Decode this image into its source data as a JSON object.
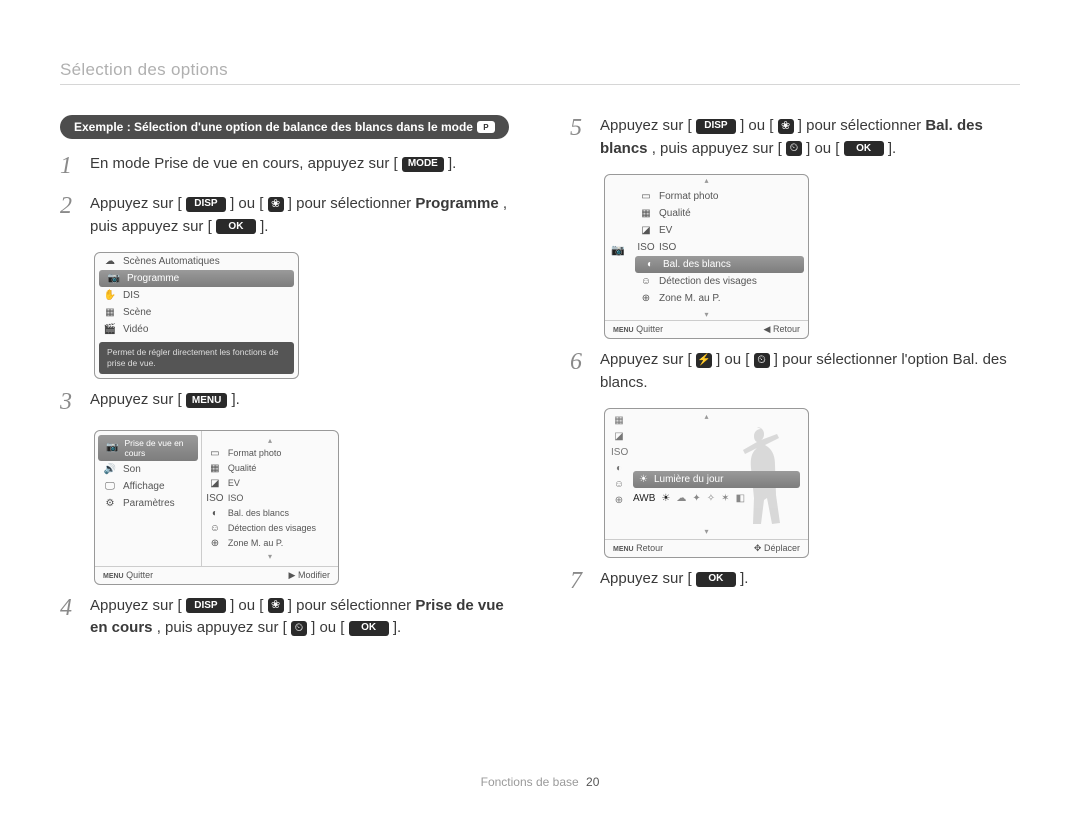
{
  "header": "Sélection des options",
  "example_pill": "Exemple : Sélection d'une option de balance des blancs dans le mode",
  "example_pill_icon": "P",
  "buttons": {
    "mode": "MODE",
    "disp": "DISP",
    "menu": "MENU",
    "ok": "OK",
    "flower": "❀",
    "timer": "⏲",
    "flash": "⚡"
  },
  "steps": {
    "s1_a": "En mode Prise de vue en cours, appuyez sur [",
    "s1_b": "].",
    "s2_a": "Appuyez sur [",
    "s2_b": "] ou [",
    "s2_c": "] pour sélectionner ",
    "s2_bold": "Programme",
    "s2_d": ", puis appuyez sur [",
    "s2_e": "].",
    "s3_a": "Appuyez sur [",
    "s3_b": "].",
    "s4_a": "Appuyez sur [",
    "s4_b": "] ou [",
    "s4_c": "] pour sélectionner ",
    "s4_bold": "Prise de vue en cours",
    "s4_d": ", puis appuyez sur [",
    "s4_e": "] ou [",
    "s4_f": "].",
    "s5_a": "Appuyez sur [",
    "s5_b": "] ou [",
    "s5_c": "] pour sélectionner ",
    "s5_bold": "Bal. des blancs",
    "s5_d": ", puis appuyez sur [",
    "s5_e": "] ou [",
    "s5_f": "].",
    "s6_a": "Appuyez sur [",
    "s6_b": "] ou [",
    "s6_c": "] pour sélectionner l'option Bal. des blancs.",
    "s7_a": "Appuyez sur [",
    "s7_b": "]."
  },
  "cam_step2": {
    "items": [
      {
        "icon": "☁",
        "label": "Scènes Automatiques"
      },
      {
        "icon": "📷",
        "label": "Programme",
        "selected": true
      },
      {
        "icon": "✋",
        "label": "DIS"
      },
      {
        "icon": "▦",
        "label": "Scène"
      },
      {
        "icon": "🎬",
        "label": "Vidéo"
      }
    ],
    "desc": "Permet de régler directement les fonctions de prise de vue."
  },
  "cam_step3": {
    "left": [
      {
        "icon": "📷",
        "label": "Prise de vue en cours",
        "selected": true
      },
      {
        "icon": "🔊",
        "label": "Son"
      },
      {
        "icon": "🖵",
        "label": "Affichage"
      },
      {
        "icon": "⚙",
        "label": "Paramètres"
      }
    ],
    "right": [
      {
        "icon": "▭",
        "label": "Format photo"
      },
      {
        "icon": "▦",
        "label": "Qualité"
      },
      {
        "icon": "◪",
        "label": "EV"
      },
      {
        "icon": "ISO",
        "label": "ISO"
      },
      {
        "icon": "◐",
        "label": "Bal. des blancs"
      },
      {
        "icon": "☺",
        "label": "Détection des visages"
      },
      {
        "icon": "⊕",
        "label": "Zone M. au P."
      }
    ],
    "footer_left_icon": "MENU",
    "footer_left": "Quitter",
    "footer_right_icon": "▶",
    "footer_right": "Modifier"
  },
  "cam_step5": {
    "side_icon": "📷",
    "items": [
      {
        "icon": "▭",
        "label": "Format photo"
      },
      {
        "icon": "▦",
        "label": "Qualité"
      },
      {
        "icon": "◪",
        "label": "EV"
      },
      {
        "icon": "ISO",
        "label": "ISO"
      },
      {
        "icon": "◐",
        "label": "Bal. des blancs",
        "selected": true
      },
      {
        "icon": "☺",
        "label": "Détection des visages"
      },
      {
        "icon": "⊕",
        "label": "Zone M. au P."
      }
    ],
    "footer_left_icon": "MENU",
    "footer_left": "Quitter",
    "footer_right_icon": "◀",
    "footer_right": "Retour"
  },
  "cam_step6": {
    "left_icons": [
      "▦",
      "◪",
      "ISO",
      "◐",
      "☺",
      "⊕"
    ],
    "wb_icon": "☀",
    "wb_label": "Lumière du jour",
    "wb_options": [
      "AWB",
      "☀",
      "☁",
      "✦",
      "✧",
      "✶",
      "◧"
    ],
    "footer_left_icon": "MENU",
    "footer_left": "Retour",
    "footer_right_icon": "✥",
    "footer_right": "Déplacer"
  },
  "footer": {
    "label": "Fonctions de base",
    "page": "20"
  }
}
